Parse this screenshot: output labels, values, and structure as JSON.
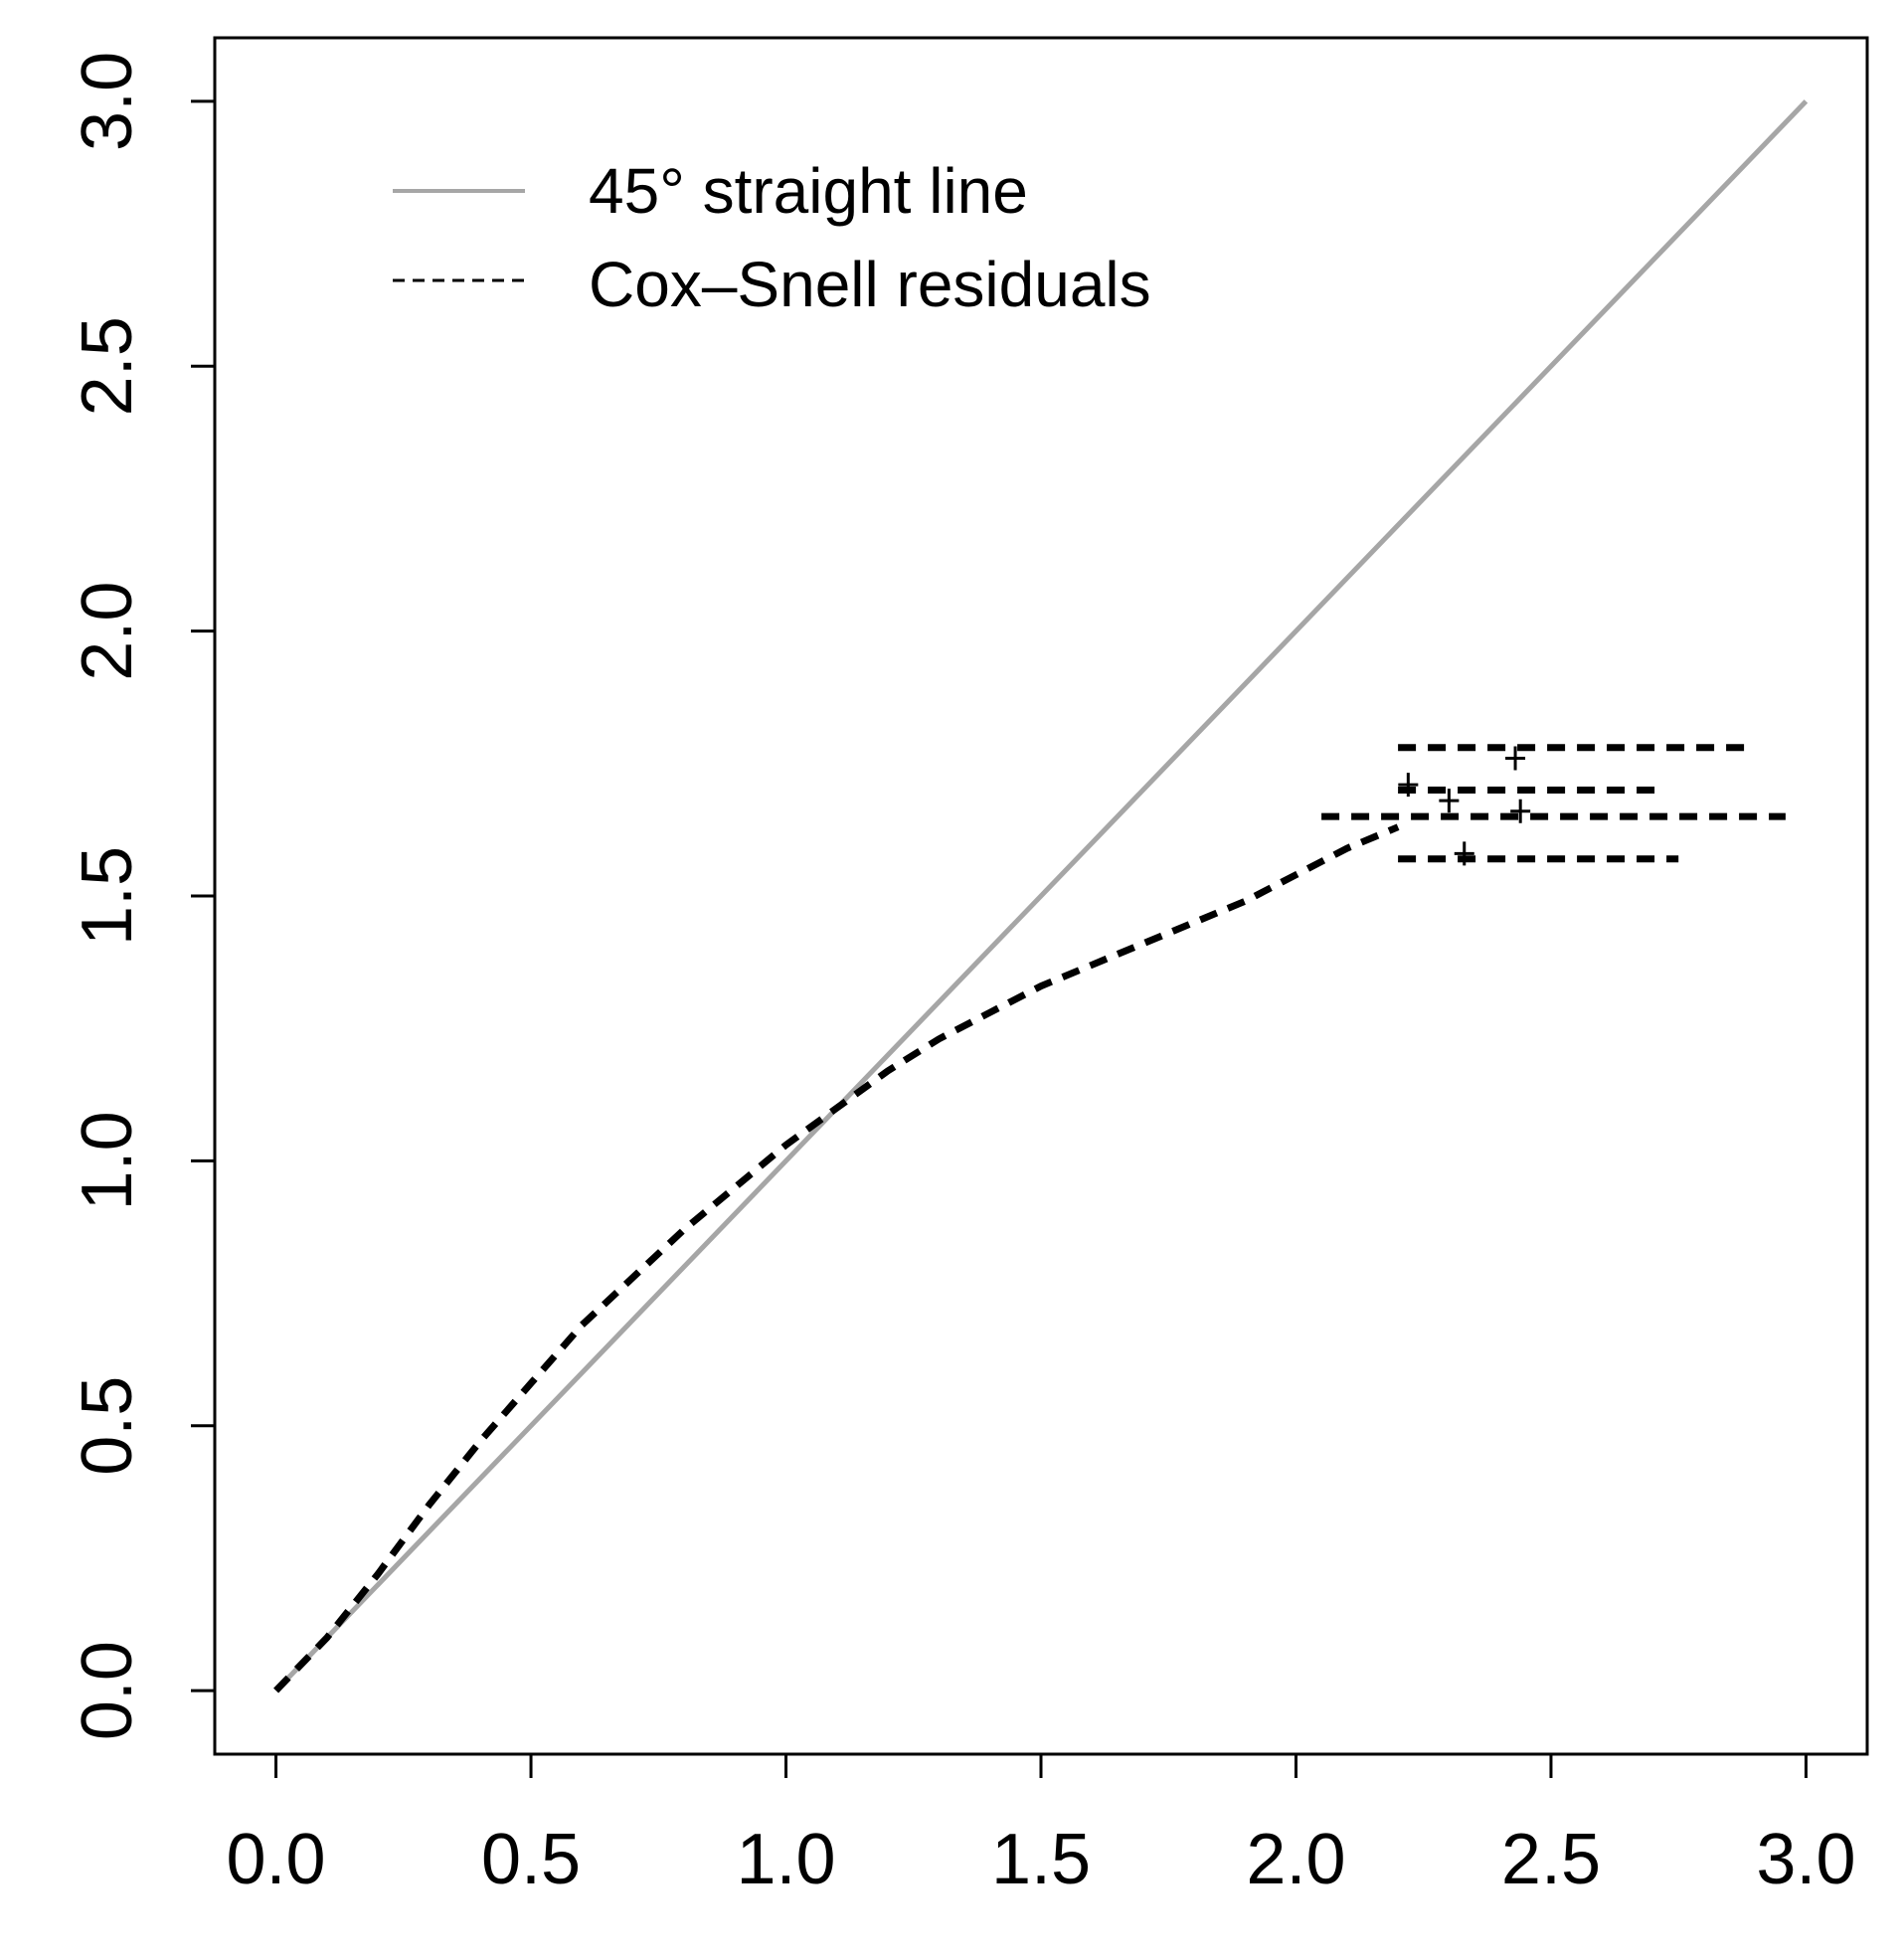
{
  "chart_data": {
    "type": "line",
    "title": "",
    "xlabel": "",
    "ylabel": "",
    "xlim": [
      -0.12,
      3.12
    ],
    "ylim": [
      -0.12,
      3.12
    ],
    "x_ticks": [
      0.0,
      0.5,
      1.0,
      1.5,
      2.0,
      2.5,
      3.0
    ],
    "x_tick_labels": [
      "0.0",
      "0.5",
      "1.0",
      "1.5",
      "2.0",
      "2.5",
      "3.0"
    ],
    "y_ticks": [
      0.0,
      0.5,
      1.0,
      1.5,
      2.0,
      2.5,
      3.0
    ],
    "y_tick_labels": [
      "0.0",
      "0.5",
      "1.0",
      "1.5",
      "2.0",
      "2.5",
      "3.0"
    ],
    "legend": {
      "position": "top-left",
      "entries": [
        {
          "label": "45° straight line",
          "style": "solid",
          "color": "#a6a6a6"
        },
        {
          "label": "Cox–Snell residuals",
          "style": "dashed",
          "color": "#000000"
        }
      ]
    },
    "series": [
      {
        "name": "45° straight line",
        "style": "solid",
        "color": "#a6a6a6",
        "x": [
          0.0,
          3.0
        ],
        "y": [
          0.0,
          3.0
        ]
      },
      {
        "name": "Cox–Snell residuals",
        "style": "dashed",
        "color": "#000000",
        "x": [
          0.0,
          0.1,
          0.2,
          0.3,
          0.4,
          0.5,
          0.6,
          0.7,
          0.8,
          0.9,
          1.0,
          1.1,
          1.2,
          1.3,
          1.4,
          1.5,
          1.6,
          1.7,
          1.8,
          1.9,
          2.0,
          2.1,
          2.2
        ],
        "y": [
          0.0,
          0.1,
          0.22,
          0.35,
          0.47,
          0.58,
          0.69,
          0.78,
          0.87,
          0.95,
          1.03,
          1.1,
          1.17,
          1.23,
          1.28,
          1.33,
          1.37,
          1.41,
          1.45,
          1.49,
          1.54,
          1.59,
          1.63
        ]
      },
      {
        "name": "Cox–Snell residuals (tail 1)",
        "style": "dashed",
        "color": "#000000",
        "x": [
          2.2,
          2.88
        ],
        "y": [
          1.78,
          1.78
        ]
      },
      {
        "name": "Cox–Snell residuals (tail 2)",
        "style": "dashed",
        "color": "#000000",
        "x": [
          2.2,
          2.72
        ],
        "y": [
          1.7,
          1.7
        ]
      },
      {
        "name": "Cox–Snell residuals (tail 3)",
        "style": "dashed",
        "color": "#000000",
        "x": [
          2.05,
          2.96
        ],
        "y": [
          1.65,
          1.65
        ]
      },
      {
        "name": "Cox–Snell residuals (tail 4)",
        "style": "dashed",
        "color": "#000000",
        "x": [
          2.2,
          2.75
        ],
        "y": [
          1.57,
          1.57
        ]
      }
    ],
    "censor_marks": [
      {
        "x": 2.43,
        "y": 1.76
      },
      {
        "x": 2.22,
        "y": 1.71
      },
      {
        "x": 2.3,
        "y": 1.68
      },
      {
        "x": 2.44,
        "y": 1.66
      },
      {
        "x": 2.33,
        "y": 1.58
      }
    ]
  }
}
